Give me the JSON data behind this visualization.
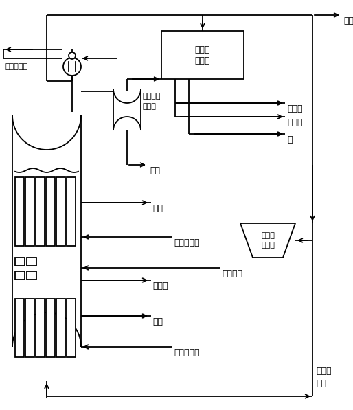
{
  "bg_color": "#ffffff",
  "line_color": "#000000",
  "text_color": "#000000",
  "labels": {
    "tail_gas": "尾气",
    "gas_liquid_sep_line1": "气液分",
    "gas_liquid_sep_line2": "离系统",
    "light_oil": "轻质油",
    "heavy_oil": "重质油",
    "water": "水",
    "recycle_compressor_line1": "循环气",
    "recycle_compressor_line2": "压缩机",
    "tower_slurry_tank_line1": "塔顶浆液",
    "tower_slurry_tank_line2": "分离罐",
    "slurry": "浆液",
    "outlet1": "出口",
    "sat_water_inlet1": "饱和水入口",
    "backflush_gas": "反吹气体",
    "ft_wax": "费托蜡",
    "outlet2": "出口",
    "sat_water_inlet2": "饱和水入口",
    "steam_generator": "蒸汽发生器",
    "fresh_syngas_line1": "新鲜合",
    "fresh_syngas_line2": "成气"
  }
}
